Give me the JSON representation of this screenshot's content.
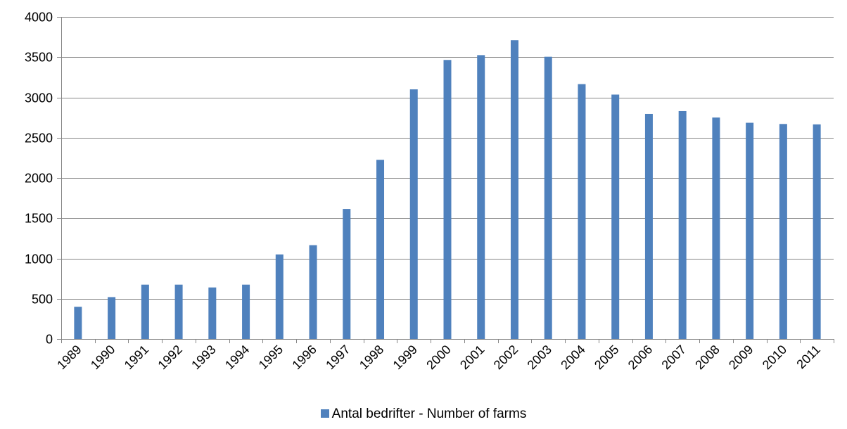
{
  "chart_data": {
    "type": "bar",
    "title": "",
    "xlabel": "",
    "ylabel": "",
    "categories": [
      "1989",
      "1990",
      "1991",
      "1992",
      "1993",
      "1994",
      "1995",
      "1996",
      "1997",
      "1998",
      "1999",
      "2000",
      "2001",
      "2002",
      "2003",
      "2004",
      "2005",
      "2006",
      "2007",
      "2008",
      "2009",
      "2010",
      "2011"
    ],
    "series": [
      {
        "name": "Antal bedrifter - Number of farms",
        "color": "#4f81bd",
        "values": [
          400,
          520,
          675,
          675,
          640,
          675,
          1050,
          1165,
          1615,
          2225,
          3100,
          3465,
          3525,
          3710,
          3505,
          3165,
          3035,
          2795,
          2830,
          2750,
          2685,
          2670,
          2665
        ]
      }
    ],
    "ylim": [
      0,
      4000
    ],
    "yticks": [
      0,
      500,
      1000,
      1500,
      2000,
      2500,
      3000,
      3500,
      4000
    ],
    "grid": true,
    "legend_position": "bottom"
  }
}
